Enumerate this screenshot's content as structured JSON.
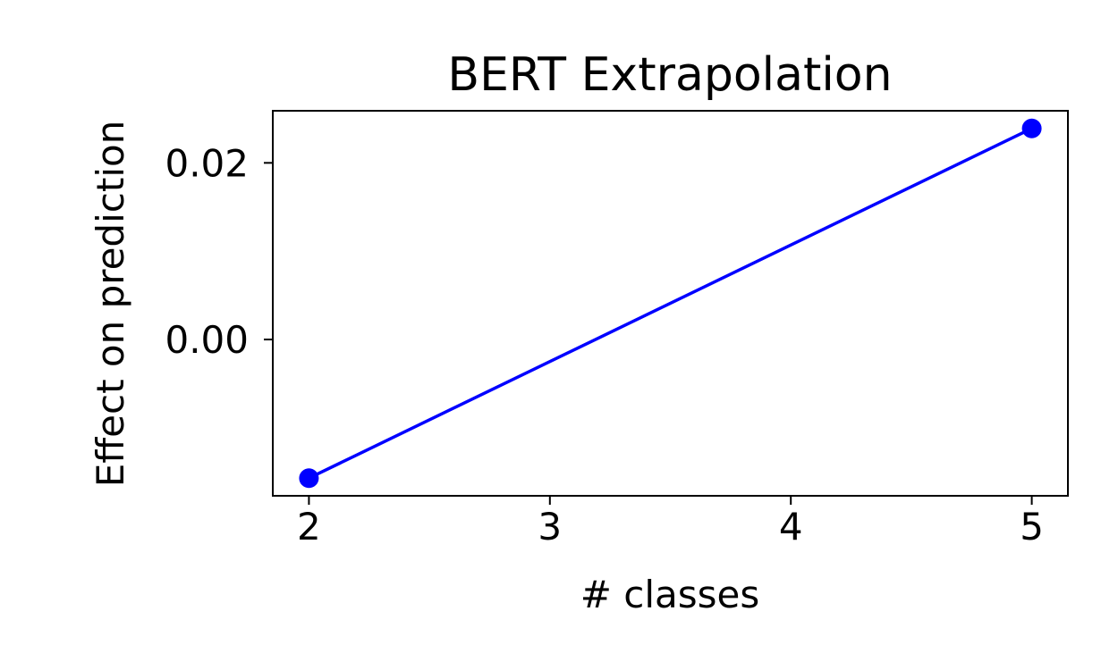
{
  "chart_data": {
    "type": "line",
    "title": "BERT Extrapolation",
    "xlabel": "# classes",
    "ylabel": "Effect on prediction",
    "x": [
      2,
      5
    ],
    "series": [
      {
        "values": [
          -0.0157,
          0.0239
        ],
        "color": "#0000ff",
        "marker": "circle"
      }
    ],
    "xticks": [
      2,
      3,
      4,
      5
    ],
    "xtick_labels": [
      "2",
      "3",
      "4",
      "5"
    ],
    "yticks": [
      0.0,
      0.02
    ],
    "ytick_labels": [
      "0.00",
      "0.02"
    ],
    "xlim": [
      1.85,
      5.15
    ],
    "ylim": [
      -0.0177,
      0.0259
    ],
    "grid": false,
    "legend": false
  }
}
